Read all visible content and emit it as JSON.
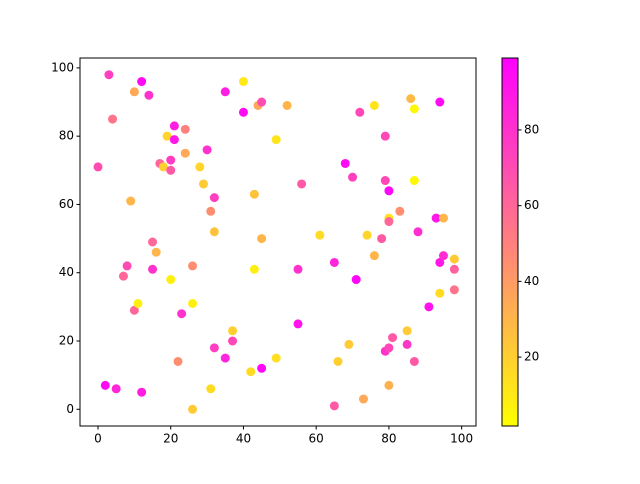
{
  "chart_data": {
    "type": "scatter",
    "x": [
      0,
      3,
      4,
      2,
      5,
      7,
      8,
      9,
      10,
      10,
      11,
      12,
      12,
      14,
      15,
      15,
      16,
      17,
      18,
      19,
      20,
      20,
      20,
      21,
      21,
      22,
      23,
      24,
      24,
      26,
      26,
      26,
      28,
      29,
      30,
      31,
      32,
      32,
      32,
      31,
      35,
      35,
      37,
      37,
      40,
      40,
      42,
      43,
      43,
      44,
      45,
      45,
      45,
      49,
      49,
      52,
      55,
      55,
      56,
      61,
      65,
      65,
      66,
      68,
      69,
      70,
      71,
      72,
      73,
      74,
      76,
      76,
      78,
      79,
      79,
      79,
      80,
      80,
      80,
      80,
      80,
      81,
      83,
      85,
      85,
      86,
      87,
      87,
      87,
      88,
      91,
      93,
      94,
      94,
      94,
      95,
      95,
      98,
      98,
      98
    ],
    "y": [
      71,
      98,
      85,
      7,
      6,
      39,
      42,
      61,
      93,
      29,
      31,
      96,
      5,
      92,
      49,
      41,
      46,
      72,
      71,
      80,
      73,
      70,
      38,
      83,
      79,
      14,
      28,
      82,
      75,
      42,
      31,
      0,
      71,
      66,
      76,
      58,
      62,
      52,
      18,
      6,
      93,
      15,
      23,
      20,
      96,
      87,
      11,
      63,
      41,
      89,
      90,
      50,
      12,
      79,
      15,
      89,
      41,
      25,
      66,
      51,
      43,
      1,
      14,
      72,
      19,
      68,
      38,
      87,
      3,
      51,
      89,
      45,
      50,
      80,
      67,
      17,
      64,
      56,
      55,
      18,
      7,
      21,
      58,
      23,
      19,
      91,
      88,
      67,
      14,
      52,
      30,
      56,
      90,
      43,
      34,
      45,
      56,
      44,
      41,
      35
    ],
    "c": [
      70,
      75,
      55,
      95,
      85,
      60,
      70,
      30,
      35,
      60,
      8,
      95,
      88,
      80,
      60,
      80,
      30,
      60,
      20,
      18,
      75,
      65,
      8,
      88,
      90,
      45,
      80,
      50,
      35,
      45,
      8,
      22,
      18,
      22,
      80,
      45,
      75,
      25,
      75,
      15,
      88,
      85,
      20,
      72,
      10,
      95,
      15,
      25,
      8,
      35,
      70,
      30,
      97,
      12,
      14,
      30,
      80,
      92,
      65,
      15,
      85,
      65,
      20,
      95,
      22,
      75,
      97,
      72,
      35,
      18,
      12,
      30,
      65,
      72,
      72,
      80,
      97,
      12,
      60,
      72,
      32,
      65,
      45,
      22,
      78,
      28,
      5,
      5,
      65,
      82,
      92,
      90,
      95,
      90,
      15,
      82,
      30,
      22,
      62,
      55
    ],
    "xlim": [
      -4.95,
      103.95
    ],
    "ylim": [
      -4.9,
      102.9
    ],
    "xticks": [
      0,
      20,
      40,
      60,
      80,
      100
    ],
    "yticks": [
      0,
      20,
      40,
      60,
      80,
      100
    ],
    "colormap": "spring_r",
    "clim": [
      1.8,
      99
    ],
    "cticks": [
      20,
      40,
      60,
      80
    ]
  }
}
